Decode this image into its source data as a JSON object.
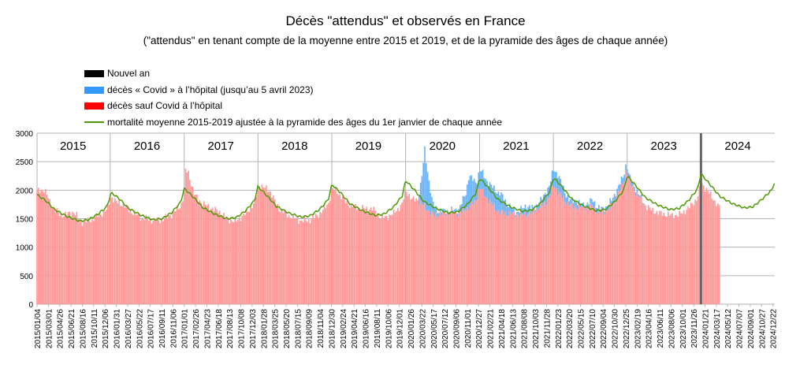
{
  "title": "Décès \"attendus\" et observés en France",
  "subtitle": "(\"attendus\" en tenant compte de la moyenne entre 2015 et 2019, et de la pyramide des âges de chaque année)",
  "colors": {
    "new_year": "#000000",
    "covid": "#3399ff",
    "non_covid": "#ff0000",
    "expected": "#4e9a06",
    "grid": "#b3b3b3"
  },
  "chart_data": {
    "type": "area",
    "title": "Décès \"attendus\" et observés en France",
    "subtitle": "(\"attendus\" en tenant compte de la moyenne entre 2015 et 2019, et de la pyramide des âges de chaque année)",
    "ylim": [
      0,
      3000
    ],
    "y_ticks": [
      "0",
      "500",
      "1000",
      "1500",
      "2000",
      "2500",
      "3000"
    ],
    "x_range": [
      "2015-01-04",
      "2024-12-31"
    ],
    "grid": true,
    "legend_position": "top-left",
    "legend": [
      "Nouvel an",
      "décès « Covid » à l’hôpital (jusqu’au 5 avril 2023)",
      "décès sauf Covid à l’hôpital",
      "mortalité moyenne 2015-2019 ajustée à la pyramide des âges du 1er janvier de chaque année"
    ],
    "x_tick_labels": [
      "2015/01/04",
      "2015/03/01",
      "2015/04/26",
      "2015/06/21",
      "2015/08/16",
      "2015/10/11",
      "2015/12/06",
      "2016/01/31",
      "2016/03/27",
      "2016/05/22",
      "2016/07/17",
      "2016/09/11",
      "2016/11/06",
      "2017/01/01",
      "2017/02/26",
      "2017/04/23",
      "2017/06/18",
      "2017/08/13",
      "2017/10/08",
      "2017/12/03",
      "2018/01/28",
      "2018/03/25",
      "2018/05/20",
      "2018/07/15",
      "2018/09/09",
      "2018/11/04",
      "2018/12/30",
      "2019/02/24",
      "2019/04/21",
      "2019/06/16",
      "2019/08/11",
      "2019/10/06",
      "2019/12/01",
      "2020/01/26",
      "2020/03/22",
      "2020/05/17",
      "2020/07/12",
      "2020/09/06",
      "2020/11/01",
      "2020/12/27",
      "2021/02/21",
      "2021/04/18",
      "2021/06/13",
      "2021/08/08",
      "2021/10/03",
      "2021/11/28",
      "2022/01/23",
      "2022/03/20",
      "2022/05/15",
      "2022/07/10",
      "2022/09/04",
      "2022/10/30",
      "2022/12/25",
      "2023/02/19",
      "2023/04/16",
      "2023/06/11",
      "2023/08/06",
      "2023/10/01",
      "2023/11/26",
      "2024/01/21",
      "2024/03/17",
      "2024/05/12",
      "2024/07/07",
      "2024/09/01",
      "2024/10/27",
      "2024/12/22"
    ],
    "year_labels": [
      {
        "label": "2015",
        "date": "2015-07-01"
      },
      {
        "label": "2016",
        "date": "2016-07-01"
      },
      {
        "label": "2017",
        "date": "2017-07-01"
      },
      {
        "label": "2018",
        "date": "2018-07-01"
      },
      {
        "label": "2019",
        "date": "2019-07-01"
      },
      {
        "label": "2020",
        "date": "2020-07-01"
      },
      {
        "label": "2021",
        "date": "2021-07-01"
      },
      {
        "label": "2022",
        "date": "2022-07-01"
      },
      {
        "label": "2023",
        "date": "2023-07-01"
      },
      {
        "label": "2024",
        "date": "2024-07-01"
      }
    ],
    "new_year_marker": "2024-01-01",
    "observed_end": "2024-04-01",
    "series": [
      {
        "name": "mortalité moyenne 2015-2019 ajustée à la pyramide des âges du 1er janvier de chaque année",
        "color": "#4e9a06",
        "points": [
          [
            "2015-01-04",
            1920
          ],
          [
            "2015-02-15",
            1820
          ],
          [
            "2015-04-01",
            1660
          ],
          [
            "2015-06-01",
            1540
          ],
          [
            "2015-08-01",
            1460
          ],
          [
            "2015-09-15",
            1480
          ],
          [
            "2015-11-01",
            1580
          ],
          [
            "2015-12-15",
            1710
          ],
          [
            "2015-12-31",
            1880
          ],
          [
            "2016-01-05",
            1960
          ],
          [
            "2016-02-15",
            1850
          ],
          [
            "2016-04-01",
            1680
          ],
          [
            "2016-06-01",
            1560
          ],
          [
            "2016-08-01",
            1480
          ],
          [
            "2016-09-15",
            1500
          ],
          [
            "2016-11-01",
            1610
          ],
          [
            "2016-12-15",
            1790
          ],
          [
            "2016-12-31",
            2020
          ],
          [
            "2017-01-05",
            2020
          ],
          [
            "2017-02-15",
            1880
          ],
          [
            "2017-04-01",
            1700
          ],
          [
            "2017-06-01",
            1580
          ],
          [
            "2017-08-01",
            1500
          ],
          [
            "2017-09-15",
            1520
          ],
          [
            "2017-11-01",
            1640
          ],
          [
            "2017-12-15",
            1820
          ],
          [
            "2017-12-31",
            2060
          ],
          [
            "2018-01-05",
            2050
          ],
          [
            "2018-02-15",
            1900
          ],
          [
            "2018-04-01",
            1720
          ],
          [
            "2018-06-01",
            1600
          ],
          [
            "2018-08-01",
            1530
          ],
          [
            "2018-09-15",
            1550
          ],
          [
            "2018-11-01",
            1660
          ],
          [
            "2018-12-15",
            1840
          ],
          [
            "2018-12-31",
            2080
          ],
          [
            "2019-01-05",
            2090
          ],
          [
            "2019-02-15",
            1950
          ],
          [
            "2019-04-01",
            1760
          ],
          [
            "2019-06-01",
            1640
          ],
          [
            "2019-08-01",
            1560
          ],
          [
            "2019-09-15",
            1580
          ],
          [
            "2019-11-01",
            1700
          ],
          [
            "2019-12-15",
            1900
          ],
          [
            "2019-12-31",
            2150
          ],
          [
            "2020-01-05",
            2160
          ],
          [
            "2020-02-15",
            2000
          ],
          [
            "2020-04-01",
            1800
          ],
          [
            "2020-06-01",
            1680
          ],
          [
            "2020-08-01",
            1600
          ],
          [
            "2020-09-15",
            1620
          ],
          [
            "2020-11-01",
            1750
          ],
          [
            "2020-12-15",
            1950
          ],
          [
            "2020-12-31",
            2200
          ],
          [
            "2021-01-05",
            2200
          ],
          [
            "2021-02-15",
            2040
          ],
          [
            "2021-04-01",
            1840
          ],
          [
            "2021-06-01",
            1710
          ],
          [
            "2021-08-01",
            1630
          ],
          [
            "2021-09-15",
            1650
          ],
          [
            "2021-11-01",
            1780
          ],
          [
            "2021-12-15",
            1980
          ],
          [
            "2021-12-31",
            2200
          ],
          [
            "2022-01-05",
            2210
          ],
          [
            "2022-02-15",
            2050
          ],
          [
            "2022-04-01",
            1850
          ],
          [
            "2022-06-01",
            1720
          ],
          [
            "2022-08-01",
            1640
          ],
          [
            "2022-09-15",
            1660
          ],
          [
            "2022-11-01",
            1800
          ],
          [
            "2022-12-15",
            2000
          ],
          [
            "2022-12-31",
            2240
          ],
          [
            "2023-01-05",
            2240
          ],
          [
            "2023-02-15",
            2070
          ],
          [
            "2023-04-01",
            1870
          ],
          [
            "2023-06-01",
            1740
          ],
          [
            "2023-08-01",
            1660
          ],
          [
            "2023-09-15",
            1680
          ],
          [
            "2023-11-01",
            1820
          ],
          [
            "2023-12-15",
            2020
          ],
          [
            "2023-12-31",
            2270
          ],
          [
            "2024-01-05",
            2270
          ],
          [
            "2024-02-15",
            2100
          ],
          [
            "2024-04-01",
            1900
          ],
          [
            "2024-06-01",
            1770
          ],
          [
            "2024-08-01",
            1690
          ],
          [
            "2024-09-15",
            1710
          ],
          [
            "2024-11-01",
            1850
          ],
          [
            "2024-12-15",
            2000
          ],
          [
            "2024-12-31",
            2140
          ]
        ]
      },
      {
        "name": "décès sauf Covid à l’hôpital",
        "color": "#ff0000",
        "offsets_from_expected": [
          [
            "2015-01-04",
            60
          ],
          [
            "2015-02-10",
            180
          ],
          [
            "2015-03-10",
            40
          ],
          [
            "2015-05-01",
            -40
          ],
          [
            "2015-07-05",
            120
          ],
          [
            "2015-08-15",
            -20
          ],
          [
            "2015-11-01",
            -30
          ],
          [
            "2015-12-31",
            -60
          ],
          [
            "2016-02-01",
            -100
          ],
          [
            "2016-03-15",
            -20
          ],
          [
            "2016-06-01",
            -40
          ],
          [
            "2016-08-01",
            -10
          ],
          [
            "2016-11-01",
            -30
          ],
          [
            "2016-12-31",
            -80
          ],
          [
            "2017-01-05",
            320
          ],
          [
            "2017-01-20",
            360
          ],
          [
            "2017-02-20",
            60
          ],
          [
            "2017-06-20",
            80
          ],
          [
            "2017-09-01",
            -60
          ],
          [
            "2017-12-31",
            -40
          ],
          [
            "2018-01-10",
            60
          ],
          [
            "2018-03-05",
            140
          ],
          [
            "2018-04-15",
            -20
          ],
          [
            "2018-08-01",
            -70
          ],
          [
            "2018-12-31",
            -80
          ],
          [
            "2019-01-20",
            -40
          ],
          [
            "2019-03-01",
            -60
          ],
          [
            "2019-07-25",
            100
          ],
          [
            "2019-09-01",
            -60
          ],
          [
            "2019-12-31",
            -160
          ],
          [
            "2020-02-01",
            -220
          ],
          [
            "2020-03-01",
            -100
          ],
          [
            "2020-04-05",
            -80
          ],
          [
            "2020-05-15",
            -150
          ],
          [
            "2020-08-10",
            30
          ],
          [
            "2020-10-01",
            -40
          ],
          [
            "2020-11-10",
            -80
          ],
          [
            "2020-12-31",
            -150
          ],
          [
            "2021-02-01",
            -220
          ],
          [
            "2021-04-15",
            -200
          ],
          [
            "2021-06-01",
            -120
          ],
          [
            "2021-08-01",
            -60
          ],
          [
            "2021-10-01",
            -40
          ],
          [
            "2021-12-31",
            -120
          ],
          [
            "2022-01-20",
            -160
          ],
          [
            "2022-03-01",
            -180
          ],
          [
            "2022-05-01",
            -80
          ],
          [
            "2022-07-15",
            60
          ],
          [
            "2022-08-10",
            -20
          ],
          [
            "2022-10-15",
            -30
          ],
          [
            "2022-12-25",
            170
          ],
          [
            "2023-01-10",
            -60
          ],
          [
            "2023-02-15",
            -120
          ],
          [
            "2023-05-01",
            -150
          ],
          [
            "2023-08-01",
            -100
          ],
          [
            "2023-10-01",
            -120
          ],
          [
            "2023-12-31",
            -160
          ],
          [
            "2024-01-10",
            -150
          ],
          [
            "2024-03-30",
            -200
          ]
        ]
      },
      {
        "name": "décès « Covid » à l’hôpital (jusqu’au 5 avril 2023)",
        "color": "#3399ff",
        "points": [
          [
            "2020-03-01",
            0
          ],
          [
            "2020-03-20",
            420
          ],
          [
            "2020-04-05",
            1000
          ],
          [
            "2020-04-20",
            650
          ],
          [
            "2020-05-10",
            250
          ],
          [
            "2020-06-10",
            60
          ],
          [
            "2020-08-15",
            20
          ],
          [
            "2020-09-20",
            60
          ],
          [
            "2020-10-25",
            280
          ],
          [
            "2020-11-10",
            560
          ],
          [
            "2020-11-25",
            440
          ],
          [
            "2020-12-20",
            280
          ],
          [
            "2021-01-15",
            330
          ],
          [
            "2021-02-15",
            300
          ],
          [
            "2021-03-20",
            320
          ],
          [
            "2021-04-15",
            330
          ],
          [
            "2021-05-20",
            160
          ],
          [
            "2021-07-01",
            30
          ],
          [
            "2021-08-20",
            150
          ],
          [
            "2021-10-01",
            40
          ],
          [
            "2021-12-01",
            180
          ],
          [
            "2022-01-01",
            280
          ],
          [
            "2022-01-25",
            300
          ],
          [
            "2022-02-20",
            180
          ],
          [
            "2022-03-20",
            80
          ],
          [
            "2022-04-20",
            110
          ],
          [
            "2022-06-01",
            30
          ],
          [
            "2022-07-15",
            110
          ],
          [
            "2022-09-01",
            40
          ],
          [
            "2022-10-25",
            110
          ],
          [
            "2022-12-20",
            120
          ],
          [
            "2023-01-20",
            80
          ],
          [
            "2023-03-01",
            40
          ],
          [
            "2023-04-05",
            0
          ]
        ]
      }
    ]
  }
}
